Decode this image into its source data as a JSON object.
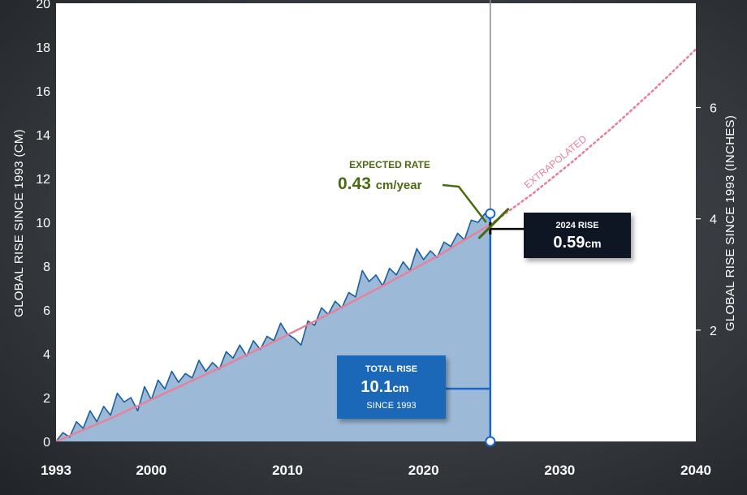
{
  "chart_data": {
    "type": "area",
    "title": "",
    "ylabel": "GLOBAL RISE SINCE 1993 (CM)",
    "ylabel_right": "GLOBAL RISE SINCE 1993 (INCHES)",
    "xlim": [
      1993,
      2040
    ],
    "ylim": [
      0,
      20
    ],
    "x_ticks": [
      "1993",
      "2000",
      "2010",
      "2020",
      "2030",
      "2040"
    ],
    "y_ticks": [
      "0",
      "2",
      "4",
      "6",
      "8",
      "10",
      "12",
      "14",
      "16",
      "18",
      "20"
    ],
    "y_right_ticks": [
      "2",
      "4",
      "6"
    ],
    "y_right_tick_values_in": [
      2,
      4,
      6
    ],
    "grid": false,
    "colors": {
      "observed": "#1a5f9e",
      "fill": "#9cbad8",
      "trend": "#e8809a",
      "expected": "#4a6a12",
      "total_box": "#1e68b8",
      "rise_box": "#0d1424",
      "marker": "#1a66c8"
    },
    "observed": {
      "x": [
        1993.0,
        1993.5,
        1994.0,
        1994.5,
        1995.0,
        1995.5,
        1996.0,
        1996.5,
        1997.0,
        1997.5,
        1998.0,
        1998.5,
        1999.0,
        1999.5,
        2000.0,
        2000.5,
        2001.0,
        2001.5,
        2002.0,
        2002.5,
        2003.0,
        2003.5,
        2004.0,
        2004.5,
        2005.0,
        2005.5,
        2006.0,
        2006.5,
        2007.0,
        2007.5,
        2008.0,
        2008.5,
        2009.0,
        2009.5,
        2010.0,
        2010.5,
        2011.0,
        2011.5,
        2012.0,
        2012.5,
        2013.0,
        2013.5,
        2014.0,
        2014.5,
        2015.0,
        2015.5,
        2016.0,
        2016.5,
        2017.0,
        2017.5,
        2018.0,
        2018.5,
        2019.0,
        2019.5,
        2020.0,
        2020.5,
        2021.0,
        2021.5,
        2022.0,
        2022.5,
        2023.0,
        2023.5,
        2024.0,
        2024.5,
        2024.9
      ],
      "y": [
        0.0,
        0.4,
        0.2,
        0.9,
        0.6,
        1.4,
        0.9,
        1.6,
        1.2,
        2.2,
        1.8,
        2.0,
        1.4,
        2.5,
        1.9,
        2.8,
        2.4,
        3.2,
        2.7,
        3.1,
        2.9,
        3.7,
        3.2,
        3.6,
        3.3,
        4.1,
        3.8,
        4.4,
        3.9,
        4.6,
        4.2,
        4.8,
        4.6,
        5.4,
        4.9,
        4.7,
        4.4,
        5.5,
        5.3,
        6.1,
        5.8,
        6.4,
        6.1,
        6.8,
        6.6,
        7.8,
        7.3,
        7.6,
        7.1,
        7.9,
        7.6,
        8.2,
        7.8,
        8.8,
        8.3,
        8.7,
        8.4,
        9.1,
        8.9,
        9.5,
        9.2,
        10.1,
        10.0,
        10.4,
        10.1
      ]
    },
    "trend": {
      "x": [
        1993,
        1997,
        2001,
        2005,
        2009,
        2013,
        2017,
        2021,
        2024.9
      ],
      "y": [
        0.0,
        1.05,
        2.2,
        3.35,
        4.55,
        5.8,
        7.1,
        8.45,
        9.9
      ]
    },
    "extrapolated": {
      "label": "EXTRAPOLATED",
      "x": [
        2024.9,
        2028,
        2031,
        2034,
        2037,
        2040
      ],
      "y": [
        9.9,
        11.3,
        12.8,
        14.4,
        16.1,
        17.9
      ]
    },
    "marker_year": 2024.9,
    "annotations": {
      "expected_title": "EXPECTED RATE",
      "expected_value": "0.43",
      "expected_unit": "cm/year",
      "rise_title": "2024 RISE",
      "rise_value": "0.59",
      "rise_unit": "cm",
      "total_title": "TOTAL RISE",
      "total_value": "10.1",
      "total_unit": "cm",
      "total_since": "SINCE 1993"
    }
  }
}
